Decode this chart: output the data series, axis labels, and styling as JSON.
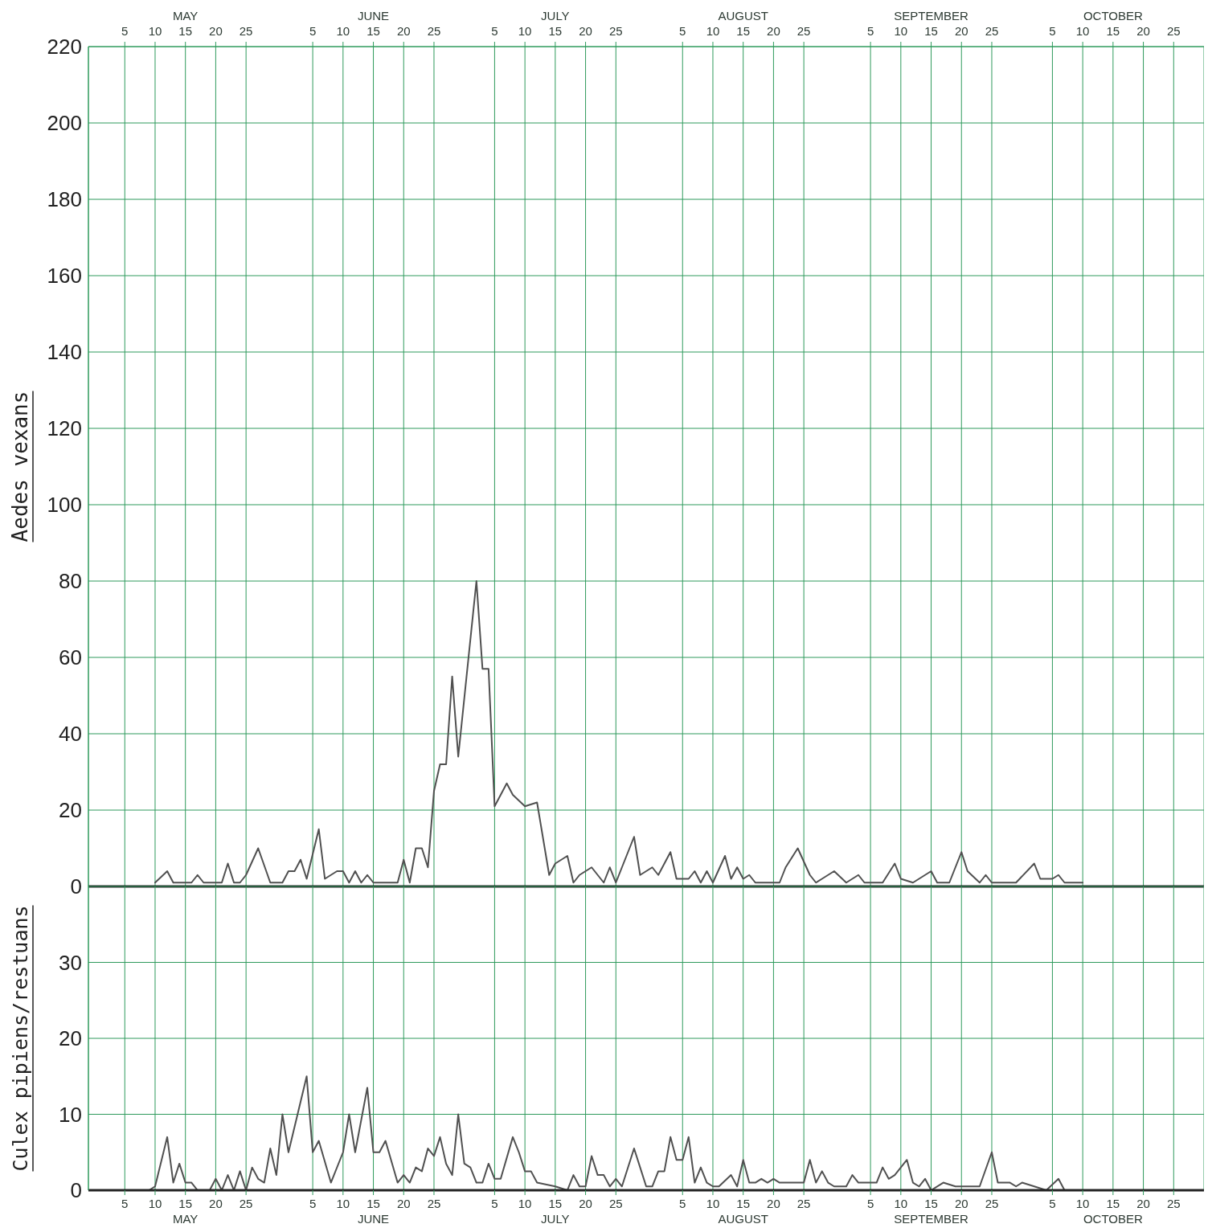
{
  "chart_data": [
    {
      "type": "line",
      "ylabel": "Aedes vexans",
      "xlim": [
        "--04-29",
        "--10-30"
      ],
      "x2lim": [
        "--04-29",
        "--10-30"
      ],
      "x2ticks": [
        {
          "value": "--05-05",
          "label": "5"
        },
        {
          "value": "--05-10",
          "label": "10"
        },
        {
          "value": "--05-15",
          "label": "MAY\n15"
        },
        {
          "value": "--05-20",
          "label": "20"
        },
        {
          "value": "--05-25",
          "label": "25"
        },
        {
          "value": "--06-05",
          "label": "5"
        },
        {
          "value": "--06-10",
          "label": "10"
        },
        {
          "value": "--06-15",
          "label": "JUNE\n15"
        },
        {
          "value": "--06-20",
          "label": "20"
        },
        {
          "value": "--06-25",
          "label": "25"
        },
        {
          "value": "--07-05",
          "label": "5"
        },
        {
          "value": "--07-10",
          "label": "10"
        },
        {
          "value": "--07-15",
          "label": "JULY\n15"
        },
        {
          "value": "--07-20",
          "label": "20"
        },
        {
          "value": "--07-25",
          "label": "25"
        },
        {
          "value": "--08-05",
          "label": "5"
        },
        {
          "value": "--08-10",
          "label": "10"
        },
        {
          "value": "--08-15",
          "label": "AUGUST\n15"
        },
        {
          "value": "--08-20",
          "label": "20"
        },
        {
          "value": "--08-25",
          "label": "25"
        },
        {
          "value": "--09-05",
          "label": "5"
        },
        {
          "value": "--09-10",
          "label": "10"
        },
        {
          "value": "--09-15",
          "label": "SEPTEMBER\n15"
        },
        {
          "value": "--09-20",
          "label": "20"
        },
        {
          "value": "--09-25",
          "label": "25"
        },
        {
          "value": "--10-05",
          "label": "5"
        },
        {
          "value": "--10-10",
          "label": "10"
        },
        {
          "value": "--10-15",
          "label": "OCTOBER\n15"
        },
        {
          "value": "--10-20",
          "label": "20"
        },
        {
          "value": "--10-25",
          "label": "25"
        }
      ],
      "ylim": [
        0,
        220
      ],
      "yticks": [
        0,
        20,
        40,
        60,
        80,
        100,
        120,
        140,
        160,
        180,
        200,
        220
      ],
      "grid": true,
      "x": [
        "--05-10",
        "--05-12",
        "--05-13",
        "--05-16",
        "--05-17",
        "--05-18",
        "--05-21",
        "--05-22",
        "--05-23",
        "--05-24",
        "--05-25",
        "--05-27",
        "--05-29",
        "--05-31",
        "--06-01",
        "--06-02",
        "--06-03",
        "--06-04",
        "--06-06",
        "--06-07",
        "--06-09",
        "--06-10",
        "--06-11",
        "--06-12",
        "--06-13",
        "--06-14",
        "--06-15",
        "--06-19",
        "--06-20",
        "--06-21",
        "--06-22",
        "--06-23",
        "--06-24",
        "--06-25",
        "--06-26",
        "--06-27",
        "--06-28",
        "--06-29",
        "--07-02",
        "--07-03",
        "--07-04",
        "--07-05",
        "--07-07",
        "--07-08",
        "--07-10",
        "--07-12",
        "--07-14",
        "--07-15",
        "--07-17",
        "--07-18",
        "--07-19",
        "--07-21",
        "--07-23",
        "--07-24",
        "--07-25",
        "--07-28",
        "--07-29",
        "--07-31",
        "--08-01",
        "--08-03",
        "--08-04",
        "--08-06",
        "--08-07",
        "--08-08",
        "--08-09",
        "--08-10",
        "--08-12",
        "--08-13",
        "--08-14",
        "--08-15",
        "--08-16",
        "--08-17",
        "--08-21",
        "--08-22",
        "--08-24",
        "--08-26",
        "--08-27",
        "--08-28",
        "--08-30",
        "--09-01",
        "--09-03",
        "--09-04",
        "--09-07",
        "--09-09",
        "--09-10",
        "--09-12",
        "--09-15",
        "--09-16",
        "--09-18",
        "--09-20",
        "--09-21",
        "--09-23",
        "--09-24",
        "--09-25",
        "--09-27",
        "--09-29",
        "--10-02",
        "--10-03",
        "--10-05",
        "--10-06",
        "--10-07",
        "--10-10"
      ],
      "series": [
        {
          "color": "#505050",
          "values": [
            1,
            4,
            1,
            1,
            3,
            1,
            1,
            6,
            1,
            1,
            3,
            10,
            1,
            1,
            4,
            4,
            7,
            2,
            15,
            2,
            4,
            4,
            1,
            4,
            1,
            3,
            1,
            1,
            7,
            1,
            10,
            10,
            5,
            25,
            32,
            32,
            55,
            34,
            80,
            57,
            57,
            21,
            27,
            24,
            21,
            22,
            3,
            6,
            8,
            1,
            3,
            5,
            1,
            5,
            1,
            13,
            3,
            5,
            3,
            9,
            2,
            2,
            4,
            1,
            4,
            1,
            8,
            2,
            5,
            2,
            3,
            1,
            1,
            5,
            10,
            3,
            1,
            2,
            4,
            1,
            3,
            1,
            1,
            6,
            2,
            1,
            4,
            1,
            1,
            9,
            4,
            1,
            3,
            1,
            1,
            1,
            6,
            2,
            2,
            3,
            1,
            1
          ]
        }
      ]
    },
    {
      "type": "line",
      "ylabel": "Culex pipiens/restuans",
      "xlim": [
        "--04-29",
        "--10-30"
      ],
      "xticks": [
        {
          "value": "--05-05",
          "label": "5"
        },
        {
          "value": "--05-10",
          "label": "10"
        },
        {
          "value": "--05-15",
          "label": "15\nMAY"
        },
        {
          "value": "--05-20",
          "label": "20"
        },
        {
          "value": "--05-25",
          "label": "25"
        },
        {
          "value": "--06-05",
          "label": "5"
        },
        {
          "value": "--06-10",
          "label": "10"
        },
        {
          "value": "--06-15",
          "label": "15\nJUNE"
        },
        {
          "value": "--06-20",
          "label": "20"
        },
        {
          "value": "--06-25",
          "label": "25"
        },
        {
          "value": "--07-05",
          "label": "5"
        },
        {
          "value": "--07-10",
          "label": "10"
        },
        {
          "value": "--07-15",
          "label": "15\nJULY"
        },
        {
          "value": "--07-20",
          "label": "20"
        },
        {
          "value": "--07-25",
          "label": "25"
        },
        {
          "value": "--08-05",
          "label": "5"
        },
        {
          "value": "--08-10",
          "label": "10"
        },
        {
          "value": "--08-15",
          "label": "15\nAUGUST"
        },
        {
          "value": "--08-20",
          "label": "20"
        },
        {
          "value": "--08-25",
          "label": "25"
        },
        {
          "value": "--09-05",
          "label": "5"
        },
        {
          "value": "--09-10",
          "label": "10"
        },
        {
          "value": "--09-15",
          "label": "15\nSEPTEMBER"
        },
        {
          "value": "--09-20",
          "label": "20"
        },
        {
          "value": "--09-25",
          "label": "25"
        },
        {
          "value": "--10-05",
          "label": "5"
        },
        {
          "value": "--10-10",
          "label": "10"
        },
        {
          "value": "--10-15",
          "label": "15\nOCTOBER"
        },
        {
          "value": "--10-20",
          "label": "20"
        },
        {
          "value": "--10-25",
          "label": "25"
        }
      ],
      "ylim": [
        0,
        40
      ],
      "yticks": [
        0,
        10,
        20,
        30
      ],
      "grid": true,
      "x": [
        "--05-09",
        "--05-10",
        "--05-12",
        "--05-13",
        "--05-14",
        "--05-15",
        "--05-16",
        "--05-17",
        "--05-19",
        "--05-20",
        "--05-21",
        "--05-22",
        "--05-23",
        "--05-24",
        "--05-25",
        "--05-26",
        "--05-27",
        "--05-28",
        "--05-29",
        "--05-30",
        "--05-31",
        "--06-01",
        "--06-04",
        "--06-05",
        "--06-06",
        "--06-08",
        "--06-10",
        "--06-11",
        "--06-12",
        "--06-14",
        "--06-15",
        "--06-16",
        "--06-17",
        "--06-19",
        "--06-20",
        "--06-21",
        "--06-22",
        "--06-23",
        "--06-24",
        "--06-25",
        "--06-26",
        "--06-27",
        "--06-28",
        "--06-29",
        "--06-30",
        "--07-01",
        "--07-02",
        "--07-03",
        "--07-04",
        "--07-05",
        "--07-06",
        "--07-08",
        "--07-09",
        "--07-10",
        "--07-11",
        "--07-12",
        "--07-15",
        "--07-17",
        "--07-18",
        "--07-19",
        "--07-20",
        "--07-21",
        "--07-22",
        "--07-23",
        "--07-24",
        "--07-25",
        "--07-26",
        "--07-28",
        "--07-29",
        "--07-30",
        "--07-31",
        "--08-01",
        "--08-02",
        "--08-03",
        "--08-04",
        "--08-05",
        "--08-06",
        "--08-07",
        "--08-08",
        "--08-09",
        "--08-10",
        "--08-11",
        "--08-13",
        "--08-14",
        "--08-15",
        "--08-16",
        "--08-17",
        "--08-18",
        "--08-19",
        "--08-20",
        "--08-21",
        "--08-25",
        "--08-26",
        "--08-27",
        "--08-28",
        "--08-29",
        "--08-30",
        "--09-01",
        "--09-02",
        "--09-03",
        "--09-06",
        "--09-07",
        "--09-08",
        "--09-09",
        "--09-11",
        "--09-12",
        "--09-13",
        "--09-14",
        "--09-15",
        "--09-17",
        "--09-19",
        "--09-20",
        "--09-23",
        "--09-25",
        "--09-26",
        "--09-28",
        "--09-29",
        "--09-30",
        "--10-04",
        "--10-06",
        "--10-07",
        "--10-10"
      ],
      "series": [
        {
          "color": "#505050",
          "values": [
            0,
            0.5,
            7,
            1,
            3.5,
            1,
            1,
            0,
            0,
            1.5,
            0,
            2,
            0,
            2.5,
            0,
            3,
            1.5,
            1,
            5.5,
            2,
            10,
            5,
            15,
            5,
            6.5,
            1,
            5,
            10,
            5,
            13.5,
            5,
            5,
            6.5,
            1,
            2,
            1,
            3,
            2.5,
            5.5,
            4.5,
            7,
            3.5,
            2,
            10,
            3.5,
            3,
            1,
            1,
            3.5,
            1.5,
            1.5,
            7,
            5,
            2.5,
            2.5,
            1,
            0.5,
            0,
            2,
            0.5,
            0.5,
            4.5,
            2,
            2,
            0.5,
            1.5,
            0.5,
            5.5,
            3,
            0.5,
            0.5,
            2.5,
            2.5,
            7,
            4,
            4,
            7,
            1,
            3,
            1,
            0.5,
            0.5,
            2,
            0.5,
            4,
            1,
            1,
            1.5,
            1,
            1.5,
            1,
            1,
            4,
            1,
            2.5,
            1,
            0.5,
            0.5,
            2,
            1,
            1,
            3,
            1.5,
            2,
            4,
            1,
            0.5,
            1.5,
            0,
            1,
            0.5,
            0.5,
            0.5,
            5,
            1,
            1,
            0.5,
            1,
            0,
            1.5,
            0,
            0
          ]
        }
      ]
    }
  ]
}
